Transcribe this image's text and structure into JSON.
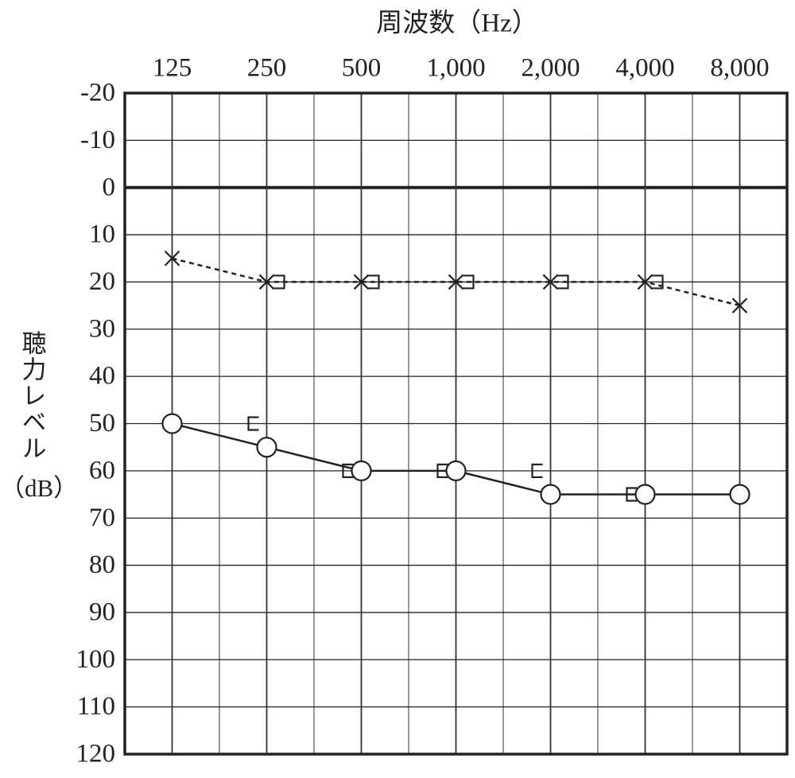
{
  "chart_data": {
    "type": "line",
    "xlabel": "周波数（Hz）",
    "ylabel": "聴力レベル",
    "ylabel_unit": "（dB）",
    "categories": [
      "125",
      "250",
      "500",
      "1,000",
      "2,000",
      "4,000",
      "8,000"
    ],
    "ylim": [
      -20,
      120
    ],
    "y_inverted": true,
    "yticks": [
      -20,
      -10,
      0,
      10,
      20,
      30,
      40,
      50,
      60,
      70,
      80,
      90,
      100,
      110,
      120
    ],
    "grid": true,
    "series": [
      {
        "color": "#222222",
        "marker": "circle",
        "line": "solid",
        "values": [
          50,
          55,
          60,
          60,
          65,
          65,
          65
        ]
      },
      {
        "color": "#222222",
        "marker": "x",
        "line": "dashed",
        "values": [
          15,
          20,
          20,
          20,
          20,
          20,
          25
        ]
      },
      {
        "color": "#222222",
        "marker": "bracket-right",
        "line": "none",
        "values": [
          null,
          20,
          20,
          20,
          20,
          20,
          null
        ]
      },
      {
        "color": "#222222",
        "marker": "bracket-left",
        "line": "none",
        "values": [
          null,
          50,
          60,
          60,
          60,
          65,
          null
        ]
      }
    ]
  }
}
